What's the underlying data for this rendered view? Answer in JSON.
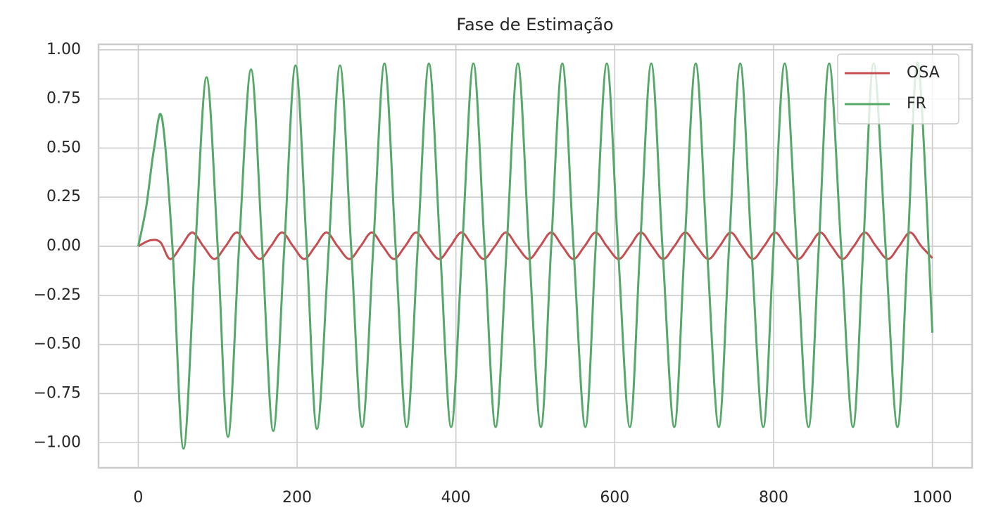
{
  "chart_data": {
    "type": "line",
    "title": "Fase de Estimação",
    "legend": "upper right",
    "grid": true,
    "xlim": [
      -50,
      1050
    ],
    "xticks": [
      0,
      200,
      400,
      600,
      800,
      1000
    ],
    "ylim": [
      -1.128,
      1.028
    ],
    "yticks": [
      {
        "value": -1,
        "label": "−1.00"
      },
      {
        "value": -0.75,
        "label": "−0.75"
      },
      {
        "value": -0.5,
        "label": "−0.50"
      },
      {
        "value": -0.25,
        "label": "−0.25"
      },
      {
        "value": 0,
        "label": "0.00"
      },
      {
        "value": 0.25,
        "label": "0.25"
      },
      {
        "value": 0.5,
        "label": "0.50"
      },
      {
        "value": 0.75,
        "label": "0.75"
      },
      {
        "value": 1,
        "label": "1.00"
      }
    ],
    "series": [
      {
        "name": "OSA",
        "color": "#c44e52",
        "x": [
          0,
          15,
          28,
          40,
          54,
          68,
          82,
          96,
          110,
          124,
          138,
          153,
          167,
          181,
          195,
          209,
          223,
          237,
          251,
          266,
          280,
          294,
          308,
          322,
          336,
          350,
          364,
          379,
          393,
          407,
          421,
          435,
          449,
          463,
          477,
          492,
          506,
          520,
          534,
          548,
          562,
          576,
          590,
          605,
          619,
          633,
          647,
          661,
          675,
          689,
          703,
          718,
          732,
          746,
          760,
          774,
          788,
          802,
          816,
          831,
          845,
          859,
          873,
          887,
          901,
          915,
          929,
          944,
          958,
          972,
          986,
          1000
        ],
        "values": [
          0,
          0.03,
          0.02,
          -0.065,
          0,
          0.07,
          0,
          -0.065,
          0,
          0.07,
          0,
          -0.065,
          0,
          0.07,
          0,
          -0.065,
          0,
          0.07,
          0,
          -0.065,
          0,
          0.07,
          0,
          -0.065,
          0,
          0.07,
          0,
          -0.065,
          0,
          0.07,
          0,
          -0.065,
          0,
          0.07,
          0,
          -0.065,
          0,
          0.07,
          0,
          -0.065,
          0,
          0.07,
          0,
          -0.065,
          0,
          0.07,
          0,
          -0.065,
          0,
          0.07,
          0,
          -0.065,
          0,
          0.07,
          0,
          -0.065,
          0,
          0.07,
          0,
          -0.065,
          0,
          0.07,
          0,
          -0.065,
          0,
          0.07,
          0,
          -0.065,
          0,
          0.07,
          0,
          -0.06
        ]
      },
      {
        "name": "FR",
        "color": "#55a868",
        "x": [
          0,
          10,
          20,
          30,
          43,
          57,
          72,
          86,
          100,
          113,
          127,
          142,
          156,
          170,
          184,
          198,
          212,
          225,
          240,
          254,
          268,
          282,
          296,
          310,
          324,
          338,
          352,
          366,
          380,
          394,
          408,
          422,
          436,
          450,
          464,
          478,
          492,
          507,
          520,
          534,
          548,
          563,
          576,
          590,
          604,
          619,
          632,
          646,
          660,
          675,
          688,
          702,
          716,
          731,
          744,
          758,
          772,
          787,
          800,
          814,
          829,
          844,
          857,
          870,
          885,
          900,
          913,
          926,
          941,
          956,
          969,
          982,
          1000
        ],
        "values": [
          0,
          0.2,
          0.5,
          0.65,
          0,
          -1.03,
          0,
          0.86,
          0,
          -0.97,
          0,
          0.9,
          0,
          -0.94,
          0,
          0.92,
          0,
          -0.93,
          0,
          0.92,
          0,
          -0.92,
          0,
          0.93,
          0,
          -0.92,
          0,
          0.93,
          0,
          -0.92,
          0,
          0.93,
          0,
          -0.92,
          0,
          0.93,
          0,
          -0.92,
          0,
          0.93,
          0,
          -0.92,
          0,
          0.93,
          0,
          -0.92,
          0,
          0.93,
          0,
          -0.92,
          0,
          0.93,
          0,
          -0.92,
          0,
          0.93,
          0,
          -0.92,
          0,
          0.93,
          0,
          -0.92,
          0,
          0.93,
          0,
          -0.92,
          0,
          0.93,
          0,
          -0.92,
          0,
          0.93,
          -0.44
        ]
      }
    ]
  }
}
